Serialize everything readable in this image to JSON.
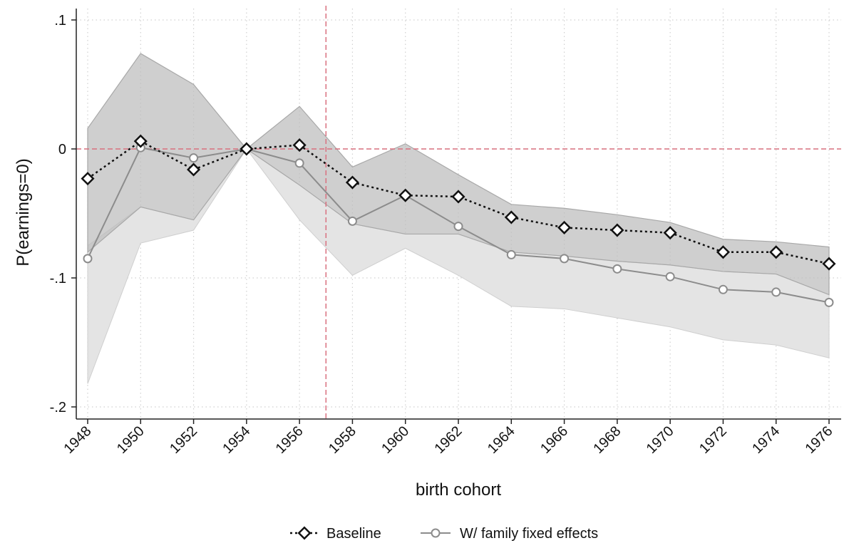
{
  "chart_data": {
    "type": "line",
    "xlabel": "birth cohort",
    "ylabel": "P(earnings=0)",
    "x": [
      1948,
      1950,
      1952,
      1954,
      1956,
      1958,
      1960,
      1962,
      1964,
      1966,
      1968,
      1970,
      1972,
      1974,
      1976
    ],
    "xticks": [
      "1948",
      "1950",
      "1952",
      "1954",
      "1956",
      "1958",
      "1960",
      "1962",
      "1964",
      "1966",
      "1968",
      "1970",
      "1972",
      "1974",
      "1976"
    ],
    "yticks": [
      {
        "value": 0.1,
        "label": ".1"
      },
      {
        "value": 0,
        "label": "0"
      },
      {
        "value": -0.1,
        "label": "-.1"
      },
      {
        "value": -0.2,
        "label": "-.2"
      }
    ],
    "xlim": [
      1948,
      1976
    ],
    "ylim": [
      -0.2,
      0.1
    ],
    "grid": true,
    "reference_lines": {
      "horizontal_y": 0,
      "vertical_x": 1957,
      "color": "#d9707f"
    },
    "legend_position": "bottom",
    "series": [
      {
        "name": "Baseline",
        "style": "dotted black line, hollow diamond markers",
        "color": "#111111",
        "values": [
          -0.023,
          0.006,
          -0.016,
          0,
          0.003,
          -0.026,
          -0.036,
          -0.037,
          -0.053,
          -0.061,
          -0.063,
          -0.065,
          -0.08,
          -0.08,
          -0.089
        ],
        "ci_lower": [
          -0.08,
          -0.045,
          -0.055,
          0,
          -0.028,
          -0.058,
          -0.066,
          -0.066,
          -0.08,
          -0.083,
          -0.087,
          -0.09,
          -0.095,
          -0.097,
          -0.113
        ],
        "ci_upper": [
          0.016,
          0.074,
          0.05,
          0,
          0.033,
          -0.014,
          0.004,
          -0.02,
          -0.043,
          -0.046,
          -0.051,
          -0.057,
          -0.07,
          -0.072,
          -0.076
        ],
        "band_color": "#bdbdbd"
      },
      {
        "name": "W/ family fixed effects",
        "style": "solid gray line, hollow circle markers",
        "color": "#8c8c8c",
        "values": [
          -0.085,
          0.001,
          -0.007,
          0,
          -0.011,
          -0.056,
          -0.036,
          -0.06,
          -0.082,
          -0.085,
          -0.093,
          -0.099,
          -0.109,
          -0.111,
          -0.119
        ],
        "ci_lower": [
          -0.182,
          -0.073,
          -0.063,
          0,
          -0.055,
          -0.098,
          -0.077,
          -0.098,
          -0.122,
          -0.124,
          -0.131,
          -0.138,
          -0.148,
          -0.152,
          -0.162
        ],
        "ci_upper": [
          -0.075,
          -0.045,
          -0.055,
          0,
          -0.028,
          -0.058,
          -0.066,
          -0.066,
          -0.08,
          -0.083,
          -0.087,
          -0.09,
          -0.095,
          -0.097,
          -0.113
        ],
        "band_color": "#e4e4e4"
      }
    ]
  }
}
